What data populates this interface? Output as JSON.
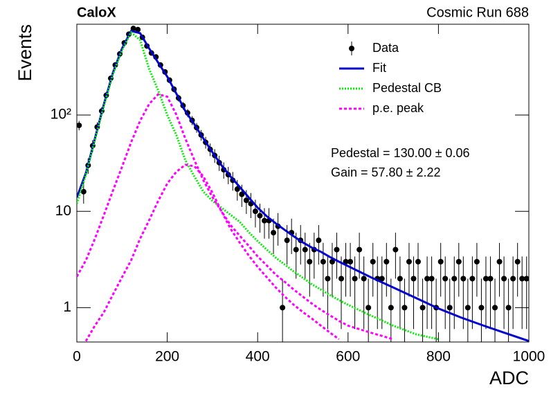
{
  "chart_data": {
    "type": "errorbar",
    "title": "CaloX",
    "subtitle": "Cosmic Run 688",
    "xlabel": "ADC",
    "ylabel": "Events",
    "annotations": [
      "Pedestal = 130.00 ± 0.06",
      "Gain = 57.80 ± 2.22"
    ],
    "xlim": [
      0,
      1000
    ],
    "xticks": [
      0,
      200,
      400,
      600,
      800,
      1000
    ],
    "ylim": [
      0.44,
      875
    ],
    "yticks": [
      1,
      10,
      {
        "value": 100,
        "label": "10²"
      }
    ],
    "log_y": true,
    "legend": "upper right",
    "series": [
      {
        "name": "Data",
        "color": "#000000",
        "style": "points",
        "x": [
          5,
          15,
          25,
          35,
          45,
          55,
          65,
          75,
          85,
          95,
          105,
          115,
          125,
          135,
          145,
          155,
          165,
          175,
          185,
          195,
          205,
          215,
          225,
          235,
          245,
          255,
          265,
          275,
          285,
          295,
          305,
          315,
          325,
          335,
          345,
          355,
          365,
          375,
          385,
          395,
          405,
          415,
          425,
          435,
          445,
          455,
          465,
          475,
          485,
          495,
          505,
          515,
          525,
          535,
          545,
          555,
          565,
          575,
          585,
          595,
          605,
          615,
          625,
          635,
          645,
          655,
          665,
          675,
          685,
          695,
          705,
          715,
          725,
          735,
          745,
          755,
          765,
          775,
          785,
          795,
          805,
          815,
          825,
          835,
          845,
          855,
          865,
          875,
          885,
          895,
          905,
          915,
          925,
          935,
          945,
          955,
          965,
          975,
          985,
          995
        ],
        "values": [
          78,
          16,
          30,
          48,
          75,
          110,
          160,
          240,
          330,
          430,
          560,
          690,
          790,
          770,
          640,
          520,
          440,
          400,
          330,
          280,
          230,
          185,
          150,
          125,
          105,
          88,
          74,
          62,
          52,
          44,
          38,
          32,
          27,
          24,
          21,
          17,
          15,
          13,
          12,
          10,
          9,
          8,
          8,
          6,
          7,
          1,
          5,
          6,
          4,
          5,
          4,
          3,
          4,
          5,
          3,
          2,
          3,
          4,
          2,
          3,
          3,
          2,
          4,
          2,
          1,
          3,
          2,
          2,
          3,
          1,
          4,
          2,
          1,
          3,
          2,
          3,
          1,
          2,
          2,
          1,
          3,
          2,
          1,
          2,
          3,
          2,
          1,
          2,
          3,
          1,
          2,
          2,
          1,
          3,
          2,
          1,
          2,
          3,
          2,
          2
        ],
        "errors": [
          8.8,
          4,
          5.5,
          6.9,
          8.7,
          10.5,
          12.6,
          15.5,
          18.2,
          20.7,
          23.7,
          26.3,
          28.1,
          27.7,
          25.3,
          22.8,
          21,
          20,
          18.2,
          16.7,
          15.2,
          13.6,
          12.2,
          11.2,
          10.2,
          9.4,
          8.6,
          7.9,
          7.2,
          6.6,
          6.2,
          5.7,
          5.2,
          4.9,
          4.6,
          4.1,
          3.9,
          3.6,
          3.5,
          3.2,
          3,
          2.8,
          2.8,
          2.4,
          2.6,
          1,
          2.2,
          2.4,
          2,
          2.2,
          2,
          1.7,
          2,
          2.2,
          1.7,
          1.4,
          1.7,
          2,
          1.4,
          1.7,
          1.7,
          1.4,
          2,
          1.4,
          1,
          1.7,
          1.4,
          1.4,
          1.7,
          1,
          2,
          1.4,
          1,
          1.7,
          1.4,
          1.7,
          1,
          1.4,
          1.4,
          1,
          1.7,
          1.4,
          1,
          1.4,
          1.7,
          1.4,
          1,
          1.4,
          1.7,
          1,
          1.4,
          1.4,
          1,
          1.7,
          1.4,
          1,
          1.4,
          1.7,
          1.4,
          1.4
        ]
      },
      {
        "name": "Fit",
        "color": "#0000cc",
        "style": "solid",
        "curves": [
          {
            "x": [
              0,
              20,
              40,
              60,
              80,
              100,
              120,
              140,
              160,
              180,
              200,
              220,
              240,
              260,
              280,
              300,
              320,
              340,
              360,
              380,
              400,
              420,
              440,
              460,
              480,
              500,
              520,
              540,
              560,
              580,
              600,
              650,
              700,
              750,
              800,
              850,
              900,
              950,
              1000
            ],
            "values": [
              13.9,
              25,
              57,
              130,
              275,
              490,
              745,
              707,
              490,
              350,
              250,
              167,
              110,
              80,
              57,
              41,
              30,
              23,
              18,
              14,
              10.9,
              8.9,
              7.5,
              6.4,
              5.5,
              4.75,
              4.2,
              3.8,
              3.35,
              3.0,
              2.7,
              2.07,
              1.62,
              1.26,
              0.98,
              0.79,
              0.65,
              0.54,
              0.45
            ]
          }
        ]
      },
      {
        "name": "Pedestal CB",
        "color": "#00ee00",
        "style": "dotted",
        "curves": [
          {
            "x": [
              0,
              20,
              40,
              60,
              80,
              100,
              120,
              140,
              160,
              180,
              200,
              220,
              240,
              260,
              280,
              300,
              320,
              340,
              360,
              380,
              400,
              420,
              440,
              460,
              480,
              500,
              520,
              540,
              560,
              580,
              600,
              650,
              700,
              750,
              800
            ],
            "values": [
              12,
              24,
              55,
              125,
              265,
              470,
              720,
              600,
              300,
              180,
              100,
              62,
              34,
              23,
              16,
              12.8,
              10.9,
              9.2,
              7.8,
              6.1,
              4.9,
              4.0,
              3.3,
              2.8,
              2.37,
              2.04,
              1.75,
              1.54,
              1.35,
              1.2,
              1.07,
              0.83,
              0.65,
              0.53,
              0.47
            ]
          }
        ]
      },
      {
        "name": "p.e. peak",
        "color": "#ff00ff",
        "style": "dashed",
        "curves": [
          {
            "x": [
              0,
              20,
              40,
              60,
              80,
              100,
              120,
              140,
              160,
              180,
              200,
              220,
              240,
              260,
              280,
              300,
              320,
              340,
              360,
              380,
              400,
              420,
              440,
              460,
              480,
              500,
              520,
              540,
              560,
              580,
              600,
              650,
              700
            ],
            "values": [
              2.1,
              3.1,
              5.2,
              9.2,
              16.4,
              29,
              52,
              87,
              130,
              164,
              155,
              101,
              57,
              34,
              21,
              14,
              10,
              7.2,
              5.6,
              4.4,
              3.4,
              2.75,
              2.2,
              1.85,
              1.54,
              1.3,
              1.1,
              0.95,
              0.83,
              0.73,
              0.65,
              0.55,
              0.47
            ]
          },
          {
            "x": [
              20,
              40,
              60,
              80,
              100,
              120,
              140,
              160,
              180,
              200,
              220,
              240,
              260,
              280,
              300,
              320,
              340,
              360,
              380,
              400,
              420,
              440,
              460,
              480,
              500,
              520,
              540,
              560,
              580
            ],
            "values": [
              0.45,
              0.65,
              0.9,
              1.37,
              2.07,
              3.1,
              5.2,
              8.1,
              12.8,
              19.4,
              25.7,
              30.4,
              29.4,
              23,
              15.6,
              10,
              6.6,
              4.75,
              3.5,
              2.65,
              2.07,
              1.62,
              1.3,
              1.07,
              0.9,
              0.77,
              0.65,
              0.55,
              0.47
            ]
          }
        ]
      }
    ]
  }
}
